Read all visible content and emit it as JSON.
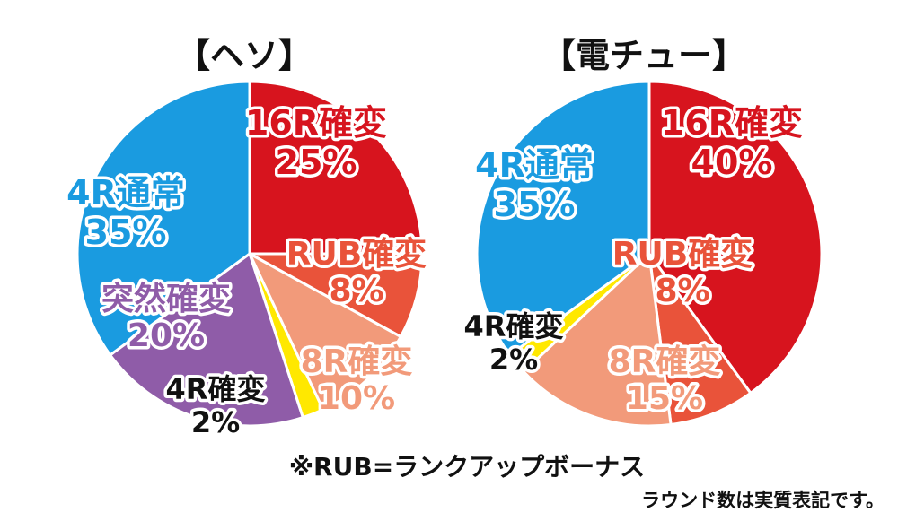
{
  "chart_data": [
    {
      "type": "pie",
      "title": "【ヘソ】",
      "slices": [
        {
          "label": "16R確変",
          "value": 25,
          "value_label": "25%",
          "color": "#d7141e",
          "label_color": "#d7141e"
        },
        {
          "label": "RUB確変",
          "value": 8,
          "value_label": "8%",
          "color": "#e9533a",
          "label_color": "#e9533a"
        },
        {
          "label": "8R確変",
          "value": 10,
          "value_label": "10%",
          "color": "#f29a7a",
          "label_color": "#f29a7a"
        },
        {
          "label": "4R確変",
          "value": 2,
          "value_label": "2%",
          "color": "#ffe800",
          "label_color": "#111111"
        },
        {
          "label": "突然確変",
          "value": 20,
          "value_label": "20%",
          "color": "#8f5ca8",
          "label_color": "#8f5ca8"
        },
        {
          "label": "4R通常",
          "value": 35,
          "value_label": "35%",
          "color": "#1a9be0",
          "label_color": "#1a9be0"
        }
      ]
    },
    {
      "type": "pie",
      "title": "【電チュー】",
      "slices": [
        {
          "label": "16R確変",
          "value": 40,
          "value_label": "40%",
          "color": "#d7141e",
          "label_color": "#d7141e"
        },
        {
          "label": "RUB確変",
          "value": 8,
          "value_label": "8%",
          "color": "#e9533a",
          "label_color": "#e9533a"
        },
        {
          "label": "8R確変",
          "value": 15,
          "value_label": "15%",
          "color": "#f29a7a",
          "label_color": "#f29a7a"
        },
        {
          "label": "4R確変",
          "value": 2,
          "value_label": "2%",
          "color": "#ffe800",
          "label_color": "#111111"
        },
        {
          "label": "4R通常",
          "value": 35,
          "value_label": "35%",
          "color": "#1a9be0",
          "label_color": "#1a9be0"
        }
      ]
    }
  ],
  "footnote": "※RUB=ランクアップボーナス",
  "footnote2": "ラウンド数は実質表記です。"
}
